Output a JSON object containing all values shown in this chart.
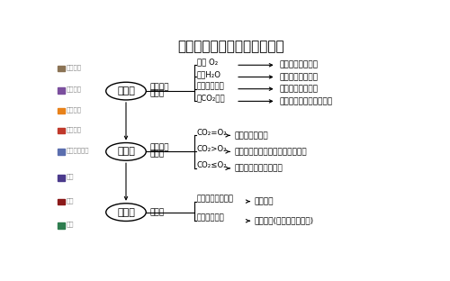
{
  "title": "判断细胞呼吸方式的三大依据",
  "background_color": "#ffffff",
  "ellipse1_label": "依据一",
  "ellipse2_label": "依据二",
  "ellipse3_label": "依据三",
  "label1a": "据反应物",
  "label1b": "和产物",
  "label2a": "据物质量",
  "label2b": "的关系",
  "label3": "据场所",
  "branch1_items": [
    "消耗 O₂",
    "产生H₂O",
    "有酒精或乳酸",
    "无CO₂释放"
  ],
  "result1_items": [
    "一定存在有氧呼吸",
    "一定存在有氧呼吸",
    "一定存在无氧呼吸",
    "一定为产乳酸的无氧呼吸"
  ],
  "branch2_items": [
    "CO₂=O₂",
    "CO₂>O₂",
    "CO₂≤O₂"
  ],
  "result2_items": [
    "只进行有氧呼吸",
    "两类呼吸并存，差值为无氧呼吸量",
    "可存在脂质类氧化分解"
  ],
  "branch3_items": [
    "只在细胞质基质中",
    "有线粒体参与"
  ],
  "result3_items": [
    "无氧呼吸",
    "有氧呼吸(或两类呼吸并存)"
  ],
  "sidebar1": [
    {
      "label": "走于回顾",
      "color": "#8B7355"
    },
    {
      "label": "液心归纳",
      "color": "#7B4F9E"
    },
    {
      "label": "方法总结",
      "color": "#E8821A"
    },
    {
      "label": "知识积累",
      "color": "#C0392B"
    },
    {
      "label": "课时课外作业",
      "color": "#5B6EAE"
    }
  ],
  "sidebar2": [
    {
      "label": "目录",
      "color": "#4B3A8C"
    },
    {
      "label": "首页",
      "color": "#8B1A1A"
    },
    {
      "label": "末页",
      "color": "#2E7D4F"
    }
  ]
}
